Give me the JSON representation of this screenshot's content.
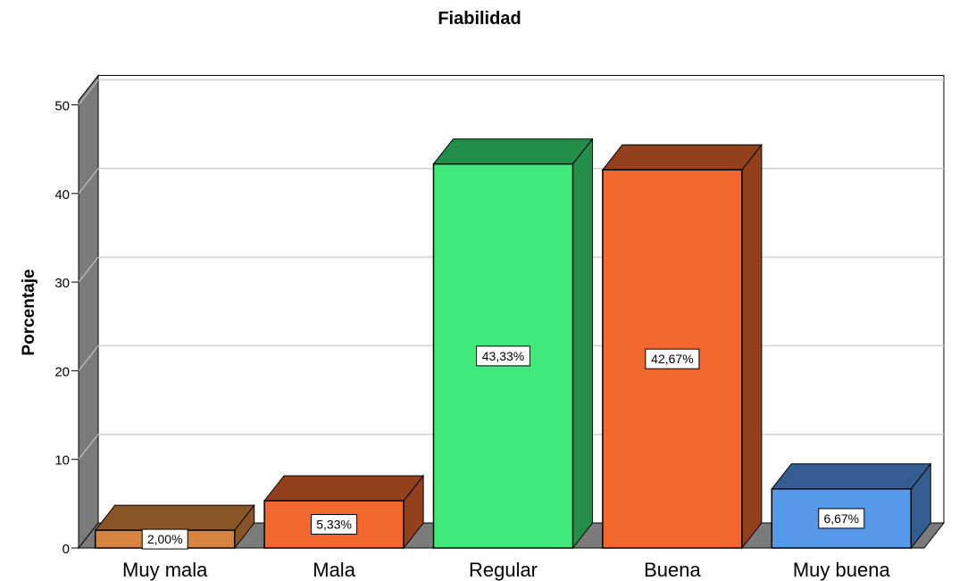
{
  "chart_data": {
    "type": "bar",
    "title": "Fiabilidad",
    "xlabel": "",
    "ylabel": "Porcentaje",
    "ylim": [
      0,
      50
    ],
    "yticks": [
      "0",
      "10",
      "20",
      "30",
      "40",
      "50"
    ],
    "grid": true,
    "style": "3d",
    "categories": [
      "Muy mala",
      "Mala",
      "Regular",
      "Buena",
      "Muy buena"
    ],
    "values": [
      2.0,
      5.33,
      43.33,
      42.67,
      6.67
    ],
    "data_labels": [
      "2,00%",
      "5,33%",
      "43,33%",
      "42,67%",
      "6,67%"
    ],
    "colors": [
      {
        "front": "#d6843f",
        "top": "#8a5526",
        "side": "#8a5526"
      },
      {
        "front": "#f2672d",
        "top": "#93411c",
        "side": "#93411c"
      },
      {
        "front": "#41e87b",
        "top": "#238d4a",
        "side": "#238d4a"
      },
      {
        "front": "#f2672d",
        "top": "#93411c",
        "side": "#93411c"
      },
      {
        "front": "#5599e8",
        "top": "#345e91",
        "side": "#345e91"
      }
    ]
  }
}
